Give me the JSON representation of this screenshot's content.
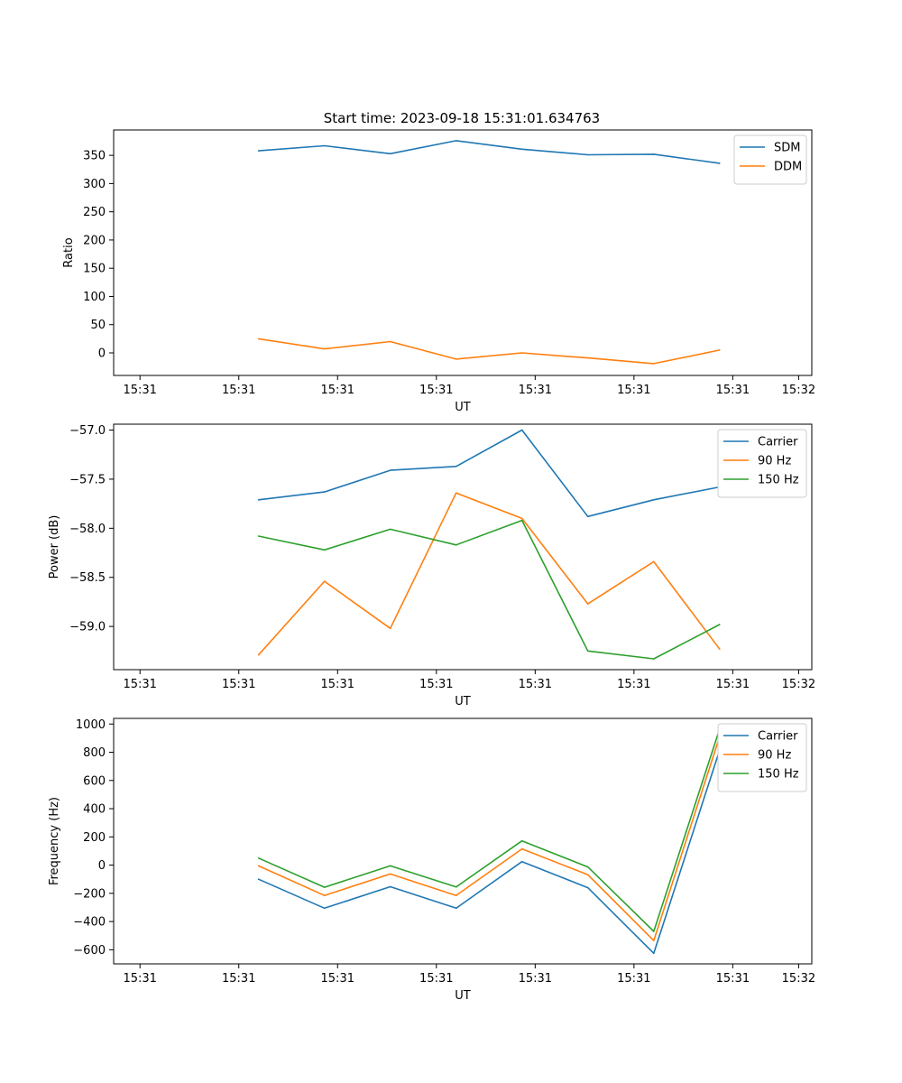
{
  "figure_title": "Start time: 2023-09-18 15:31:01.634763",
  "chart_data": [
    {
      "type": "line",
      "title": "Start time: 2023-09-18 15:31:01.634763",
      "xlabel": "UT",
      "ylabel": "Ratio",
      "x": [
        0.8,
        1.8,
        2.8,
        3.8,
        4.8,
        5.8,
        6.8,
        7.8
      ],
      "xlim": [
        -1.4,
        9.2
      ],
      "xticks": [
        -1,
        0.5,
        2,
        3.5,
        5,
        6.5,
        8,
        9
      ],
      "xtick_labels": [
        "15:31",
        "15:31",
        "15:31",
        "15:31",
        "15:31",
        "15:31",
        "15:31",
        "15:32"
      ],
      "ylim": [
        -40,
        395
      ],
      "yticks": [
        0,
        50,
        100,
        150,
        200,
        250,
        300,
        350
      ],
      "ytick_labels": [
        "0",
        "50",
        "100",
        "150",
        "200",
        "250",
        "300",
        "350"
      ],
      "legend_position": "top-right",
      "series": [
        {
          "name": "SDM",
          "color": "#1f77b4",
          "values": [
            358,
            367,
            353,
            376,
            361,
            351,
            352,
            336
          ]
        },
        {
          "name": "DDM",
          "color": "#ff7f0e",
          "values": [
            25,
            7,
            20,
            -11,
            0,
            -9,
            -19,
            5
          ]
        }
      ]
    },
    {
      "type": "line",
      "title": "",
      "xlabel": "UT",
      "ylabel": "Power (dB)",
      "x": [
        0.8,
        1.8,
        2.8,
        3.8,
        4.8,
        5.8,
        6.8,
        7.8
      ],
      "xlim": [
        -1.4,
        9.2
      ],
      "xticks": [
        -1,
        0.5,
        2,
        3.5,
        5,
        6.5,
        8,
        9
      ],
      "xtick_labels": [
        "15:31",
        "15:31",
        "15:31",
        "15:31",
        "15:31",
        "15:31",
        "15:31",
        "15:32"
      ],
      "ylim": [
        -59.44,
        -56.94
      ],
      "yticks": [
        -59.0,
        -58.5,
        -58.0,
        -57.5,
        -57.0
      ],
      "ytick_labels": [
        "−59.0",
        "−58.5",
        "−58.0",
        "−57.5",
        "−57.0"
      ],
      "legend_position": "top-right",
      "series": [
        {
          "name": "Carrier",
          "color": "#1f77b4",
          "values": [
            -57.71,
            -57.63,
            -57.41,
            -57.37,
            -57.0,
            -57.88,
            -57.71,
            -57.58
          ]
        },
        {
          "name": "90 Hz",
          "color": "#ff7f0e",
          "values": [
            -59.29,
            -58.54,
            -59.02,
            -57.64,
            -57.9,
            -58.77,
            -58.34,
            -59.23
          ]
        },
        {
          "name": "150 Hz",
          "color": "#2ca02c",
          "values": [
            -58.08,
            -58.22,
            -58.01,
            -58.17,
            -57.92,
            -59.25,
            -59.33,
            -58.98
          ]
        }
      ]
    },
    {
      "type": "line",
      "title": "",
      "xlabel": "UT",
      "ylabel": "Frequency (Hz)",
      "x": [
        0.8,
        1.8,
        2.8,
        3.8,
        4.8,
        5.8,
        6.8,
        7.8
      ],
      "xlim": [
        -1.4,
        9.2
      ],
      "xticks": [
        -1,
        0.5,
        2,
        3.5,
        5,
        6.5,
        8,
        9
      ],
      "xtick_labels": [
        "15:31",
        "15:31",
        "15:31",
        "15:31",
        "15:31",
        "15:31",
        "15:31",
        "15:32"
      ],
      "ylim": [
        -700,
        1040
      ],
      "yticks": [
        -600,
        -400,
        -200,
        0,
        200,
        400,
        600,
        800,
        1000
      ],
      "ytick_labels": [
        "−600",
        "−400",
        "−200",
        "0",
        "200",
        "400",
        "600",
        "800",
        "1000"
      ],
      "legend_position": "top-right",
      "series": [
        {
          "name": "Carrier",
          "color": "#1f77b4",
          "values": [
            -100,
            -305,
            -153,
            -305,
            25,
            -160,
            -625,
            815
          ]
        },
        {
          "name": "90 Hz",
          "color": "#ff7f0e",
          "values": [
            -5,
            -215,
            -63,
            -215,
            115,
            -68,
            -535,
            910
          ]
        },
        {
          "name": "150 Hz",
          "color": "#2ca02c",
          "values": [
            50,
            -157,
            -5,
            -155,
            172,
            -13,
            -470,
            965
          ]
        }
      ]
    }
  ]
}
